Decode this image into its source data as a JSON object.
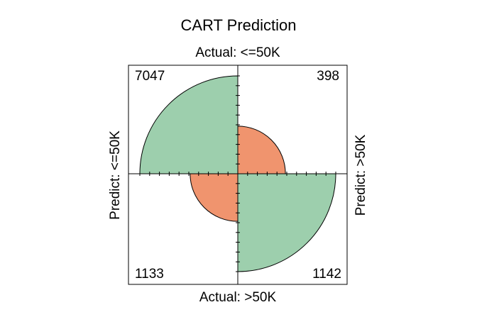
{
  "chart_data": {
    "type": "fourfold",
    "title": "CART Prediction",
    "top_label": "Actual: <=50K",
    "bottom_label": "Actual: >50K",
    "left_label": "Predict: <=50K",
    "right_label": "Predict: >50K",
    "values": [
      [
        7047,
        398
      ],
      [
        1133,
        1142
      ]
    ],
    "colors": [
      "#9dcfad",
      "#f0946e"
    ]
  }
}
